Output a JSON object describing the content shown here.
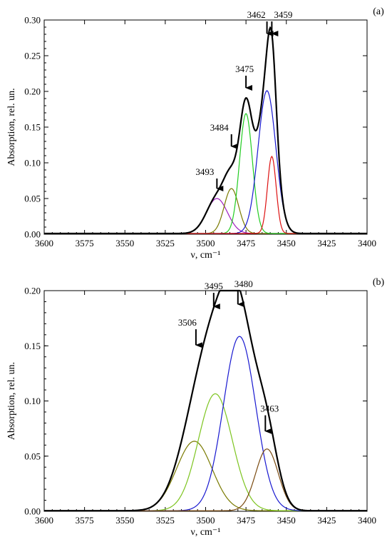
{
  "chart_data": [
    {
      "type": "line",
      "panel_label": "(a)",
      "xlabel": "ν, cm⁻¹",
      "ylabel": "Absorption, rel. un.",
      "xlim": [
        3600,
        3400
      ],
      "ylim": [
        0,
        0.3
      ],
      "x_reversed": true,
      "xticks": [
        3600,
        3575,
        3550,
        3525,
        3500,
        3475,
        3450,
        3425,
        3400
      ],
      "xtick_labels": [
        "3600",
        "3575",
        "3550",
        "3525",
        "3500",
        "3475",
        "3450",
        "3425",
        "3400"
      ],
      "yticks": [
        0,
        0.05,
        0.1,
        0.15,
        0.2,
        0.25,
        0.3
      ],
      "ytick_labels": [
        "0.00",
        "0.05",
        "0.10",
        "0.15",
        "0.20",
        "0.25",
        "0.30"
      ],
      "grid": false,
      "baseline_offset": 0.001,
      "series": [
        {
          "role": "component",
          "color": "#a020c0",
          "center": 3493,
          "amplitude": 0.049,
          "width": 6.5
        },
        {
          "role": "component",
          "color": "#7a7a00",
          "center": 3484,
          "amplitude": 0.063,
          "width": 4.5
        },
        {
          "role": "component",
          "color": "#22cc22",
          "center": 3475,
          "amplitude": 0.168,
          "width": 4.0
        },
        {
          "role": "component",
          "color": "#1818d0",
          "center": 3462,
          "amplitude": 0.2,
          "width": 5.5
        },
        {
          "role": "component",
          "color": "#dd1111",
          "center": 3459,
          "amplitude": 0.108,
          "width": 2.7
        }
      ],
      "envelope": {
        "role": "envelope",
        "color": "#000000"
      },
      "annotations": [
        {
          "label": "3493",
          "x": 3493,
          "y_tip": 0.063,
          "y_tail": 0.078,
          "text_anchor": "end",
          "text_dx": -4
        },
        {
          "label": "3484",
          "x": 3484,
          "y_tip": 0.122,
          "y_tail": 0.14,
          "text_anchor": "end",
          "text_dx": -4
        },
        {
          "label": "3475",
          "x": 3475,
          "y_tip": 0.204,
          "y_tail": 0.222,
          "text_anchor": "middle",
          "text_dx": -2
        },
        {
          "label": "3462",
          "x": 3462,
          "y_tip": 0.28,
          "y_tail": 0.298,
          "text_anchor": "end",
          "text_dx": -2
        },
        {
          "label": "3459",
          "x": 3459,
          "y_tip": 0.28,
          "y_tail": 0.298,
          "text_anchor": "start",
          "text_dx": 3
        }
      ]
    },
    {
      "type": "line",
      "panel_label": "(b)",
      "xlabel": "ν, cm⁻¹",
      "ylabel": "Absorption, rel. un.",
      "xlim": [
        3600,
        3400
      ],
      "ylim": [
        0,
        0.2
      ],
      "x_reversed": true,
      "xticks": [
        3600,
        3575,
        3550,
        3525,
        3500,
        3475,
        3450,
        3425,
        3400
      ],
      "xtick_labels": [
        "3600",
        "3575",
        "3550",
        "3525",
        "3500",
        "3475",
        "3450",
        "3425",
        "3400"
      ],
      "yticks": [
        0,
        0.05,
        0.1,
        0.15,
        0.2
      ],
      "ytick_labels": [
        "0.00",
        "0.05",
        "0.10",
        "0.15",
        "0.20"
      ],
      "grid": false,
      "baseline_offset": 0.0005,
      "series": [
        {
          "role": "component",
          "color": "#7a7a00",
          "center": 3507,
          "amplitude": 0.063,
          "width": 11.0
        },
        {
          "role": "component",
          "color": "#7cc41e",
          "center": 3494,
          "amplitude": 0.106,
          "width": 10.5
        },
        {
          "role": "component",
          "color": "#1818d0",
          "center": 3479,
          "amplitude": 0.158,
          "width": 10.0
        },
        {
          "role": "component",
          "color": "#7a4a10",
          "center": 3462,
          "amplitude": 0.056,
          "width": 7.0
        }
      ],
      "envelope": {
        "role": "envelope",
        "color": "#000000"
      },
      "annotations": [
        {
          "label": "3506",
          "x": 3506,
          "y_tip": 0.15,
          "y_tail": 0.165,
          "text_anchor": "middle",
          "text_dx": -12
        },
        {
          "label": "3495",
          "x": 3495,
          "y_tip": 0.185,
          "y_tail": 0.198,
          "text_anchor": "middle",
          "text_dx": 0
        },
        {
          "label": "3480",
          "x": 3480,
          "y_tip": 0.187,
          "y_tail": 0.2,
          "text_anchor": "middle",
          "text_dx": 8
        },
        {
          "label": "3463",
          "x": 3463,
          "y_tip": 0.072,
          "y_tail": 0.087,
          "text_anchor": "middle",
          "text_dx": 6
        }
      ]
    }
  ]
}
